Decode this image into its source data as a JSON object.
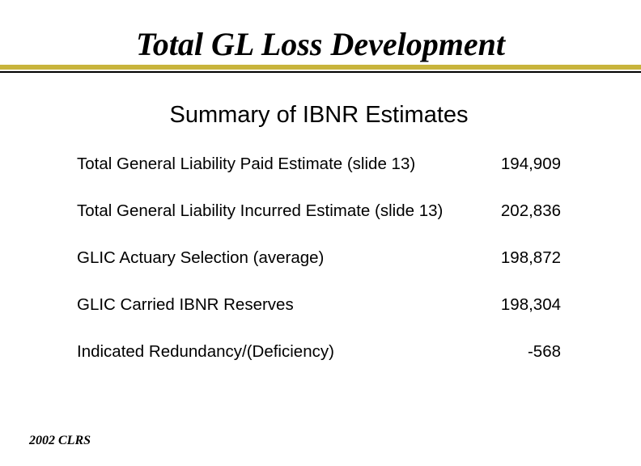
{
  "slide": {
    "title": "Total GL Loss Development",
    "subtitle": "Summary of IBNR Estimates",
    "footer": "2002 CLRS",
    "accent_color": "#c8b43c"
  },
  "rows": [
    {
      "label": "Total General Liability Paid Estimate (slide 13)",
      "value": "194,909"
    },
    {
      "label": "Total General Liability Incurred Estimate (slide 13)",
      "value": "202,836"
    },
    {
      "label": "GLIC Actuary Selection (average)",
      "value": "198,872"
    },
    {
      "label": "GLIC Carried IBNR Reserves",
      "value": "198,304"
    },
    {
      "label": "Indicated Redundancy/(Deficiency)",
      "value": "-568"
    }
  ]
}
